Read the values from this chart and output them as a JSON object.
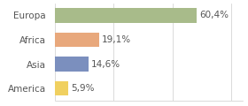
{
  "categories": [
    "Europa",
    "Africa",
    "Asia",
    "America"
  ],
  "values": [
    60.4,
    19.1,
    14.6,
    5.9
  ],
  "labels": [
    "60,4%",
    "19,1%",
    "14,6%",
    "5,9%"
  ],
  "colors": [
    "#a8bb8a",
    "#e8a87c",
    "#7b8fbe",
    "#f0d060"
  ],
  "xlim": [
    0,
    80
  ],
  "background_color": "#ffffff",
  "bar_height": 0.6,
  "label_fontsize": 7.5,
  "tick_fontsize": 7.5,
  "grid_color": "#cccccc",
  "grid_ticks": [
    0,
    25,
    50,
    75
  ]
}
